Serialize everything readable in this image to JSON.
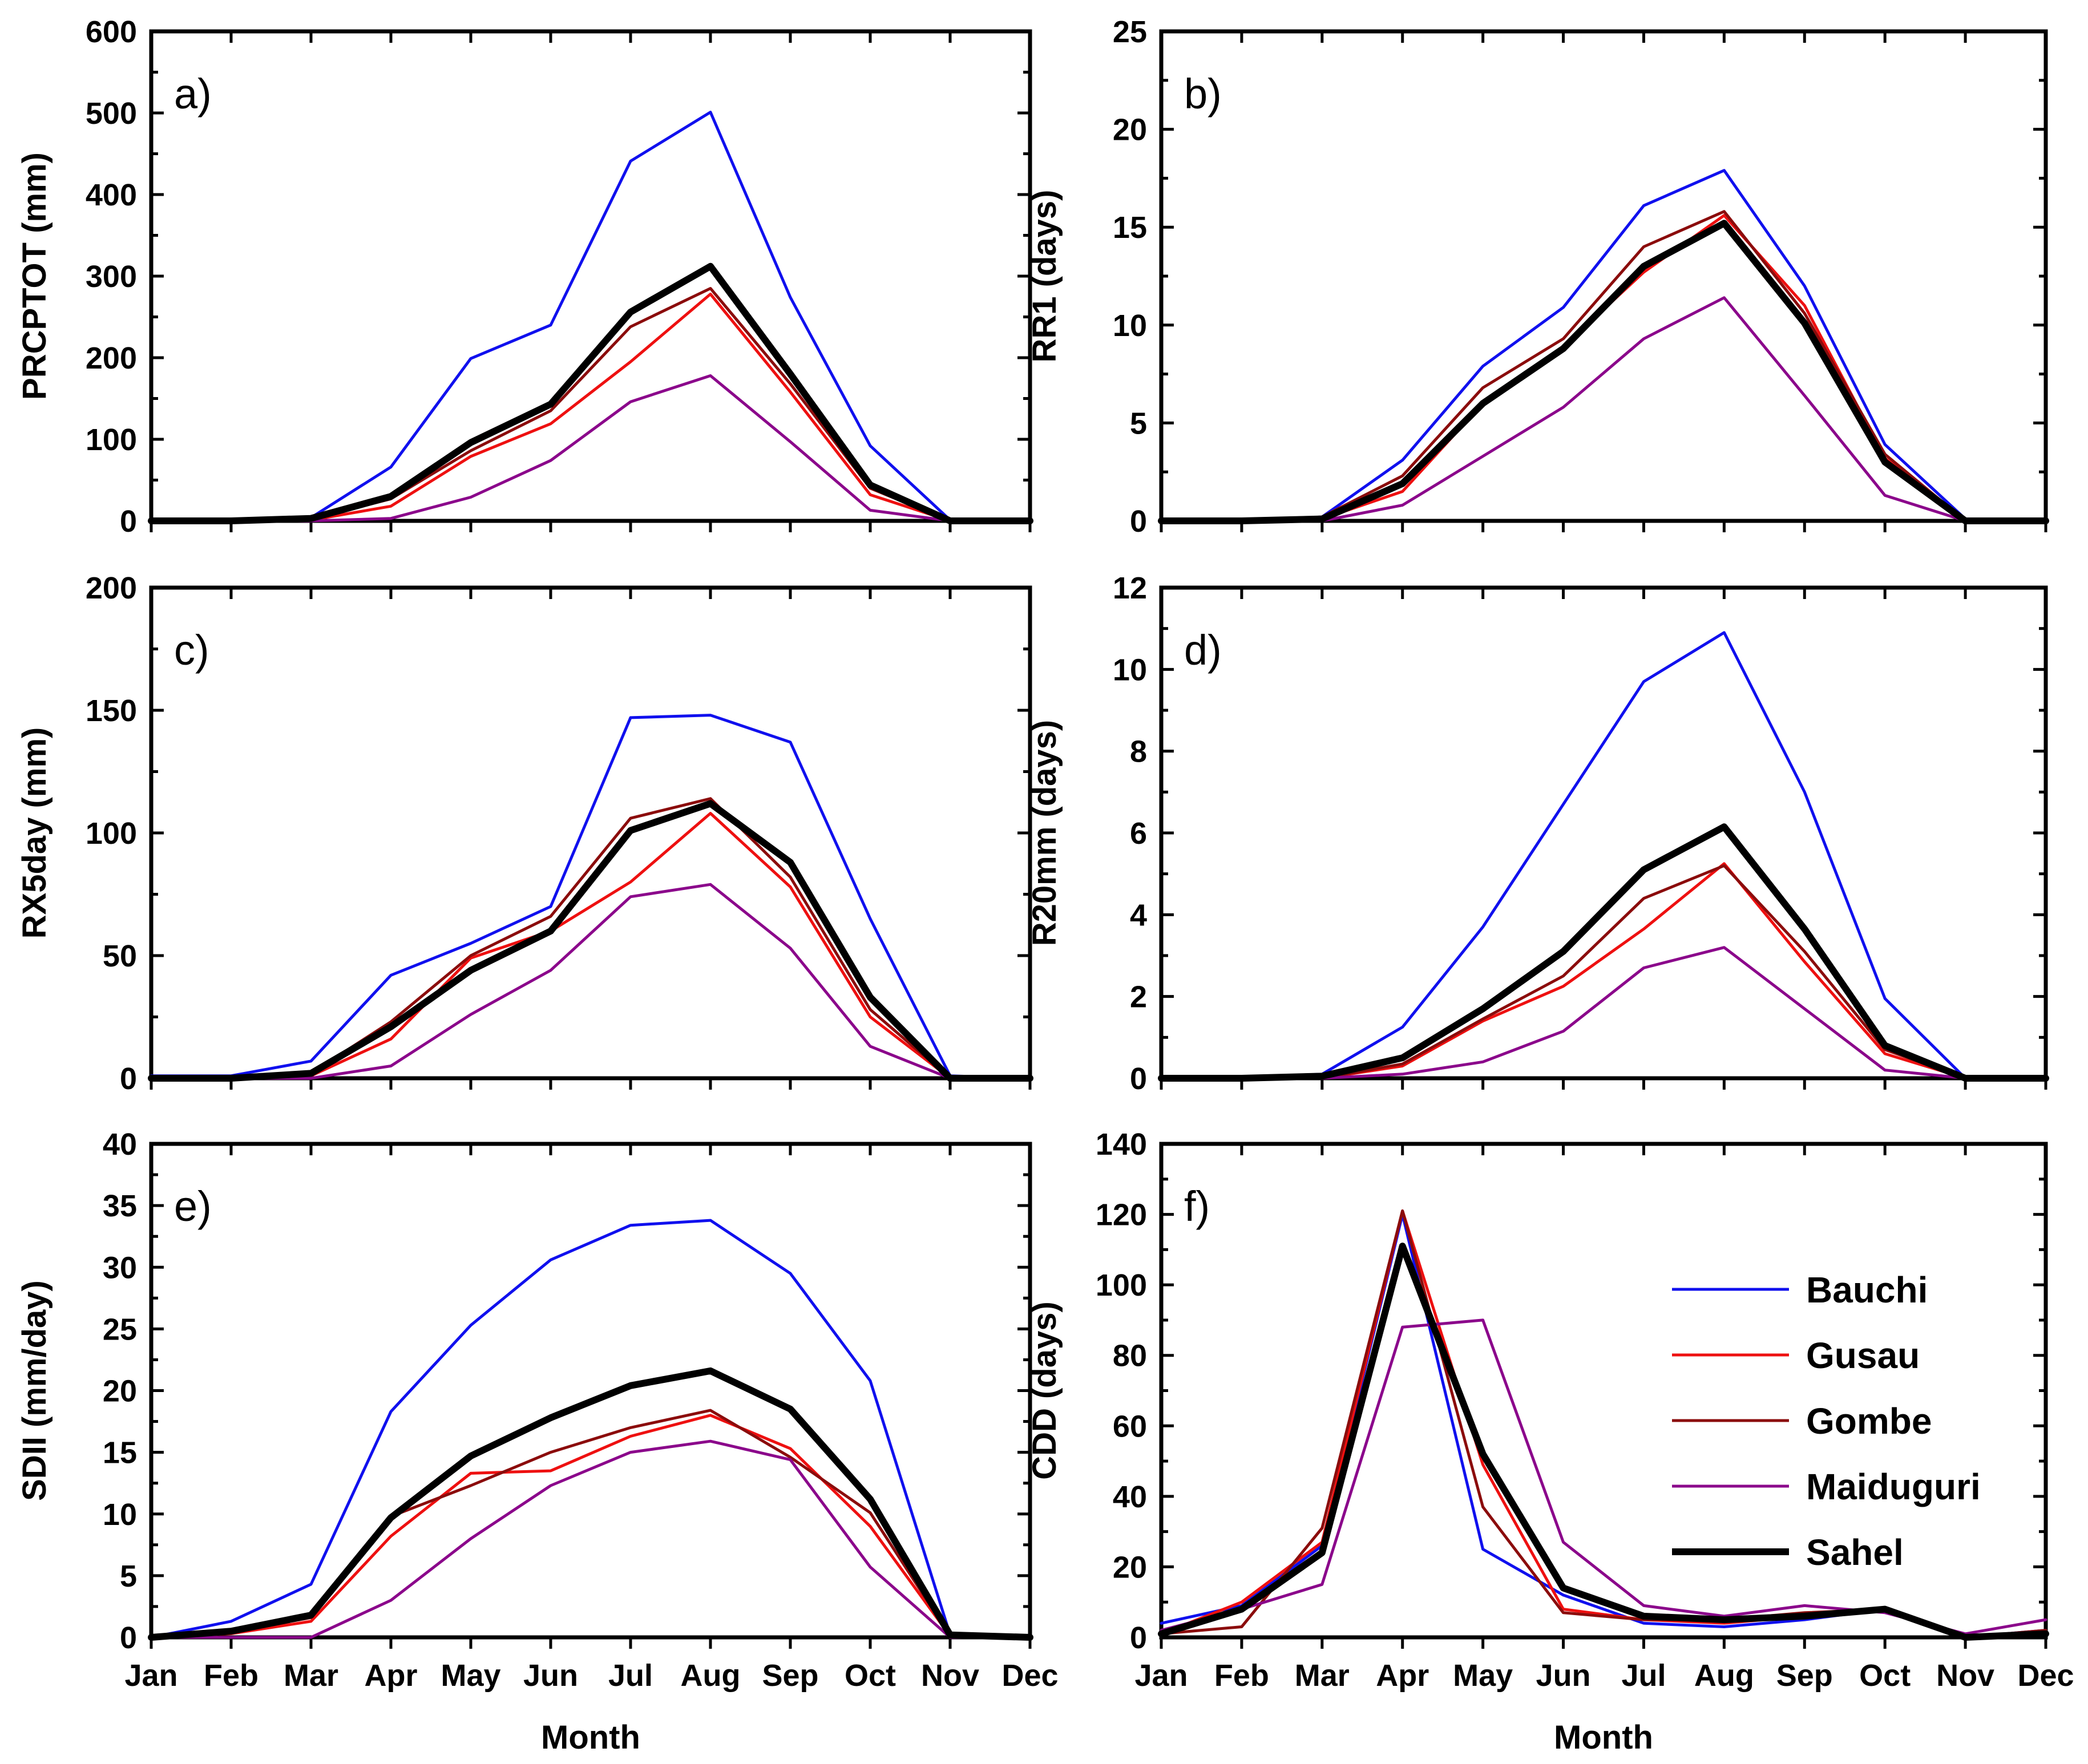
{
  "colors": {
    "Bauchi": "#1010ee",
    "Gusau": "#ee1010",
    "Gombe": "#8b0c0c",
    "Maiduguri": "#8b068b",
    "Sahel": "#000000"
  },
  "xlabel": "Month",
  "legend": {
    "position": "panel f, right",
    "entries": [
      "Bauchi",
      "Gusau",
      "Gombe",
      "Maiduguri",
      "Sahel"
    ]
  },
  "chart_data": [
    {
      "type": "line",
      "panel": "a)",
      "ylabel": "PRCPTOT (mm)",
      "ylim": [
        0,
        600
      ],
      "yticks": [
        0,
        100,
        200,
        300,
        400,
        500,
        600
      ],
      "categories": [
        "Jan",
        "Feb",
        "Mar",
        "Apr",
        "May",
        "Jun",
        "Jul",
        "Aug",
        "Sep",
        "Oct",
        "Nov",
        "Dec"
      ],
      "series": [
        {
          "name": "Bauchi",
          "values": [
            0,
            1,
            4,
            66,
            199,
            240,
            441,
            501,
            274,
            92,
            1,
            0
          ]
        },
        {
          "name": "Gusau",
          "values": [
            0,
            0,
            1,
            18,
            79,
            119,
            195,
            278,
            158,
            32,
            0,
            0
          ]
        },
        {
          "name": "Gombe",
          "values": [
            0,
            0,
            2,
            27,
            86,
            135,
            238,
            285,
            168,
            40,
            0,
            0
          ]
        },
        {
          "name": "Maiduguri",
          "values": [
            0,
            0,
            0,
            3,
            29,
            74,
            146,
            178,
            97,
            13,
            0,
            0
          ]
        },
        {
          "name": "Sahel",
          "values": [
            0,
            0,
            3,
            30,
            96,
            143,
            256,
            312,
            180,
            44,
            0,
            0
          ]
        }
      ]
    },
    {
      "type": "line",
      "panel": "b)",
      "ylabel": "RR1 (days)",
      "ylim": [
        0,
        25
      ],
      "yticks": [
        0,
        5,
        10,
        15,
        20,
        25
      ],
      "categories": [
        "Jan",
        "Feb",
        "Mar",
        "Apr",
        "May",
        "Jun",
        "Jul",
        "Aug",
        "Sep",
        "Oct",
        "Nov",
        "Dec"
      ],
      "series": [
        {
          "name": "Bauchi",
          "values": [
            0,
            0,
            0.2,
            3.1,
            7.9,
            10.9,
            16.1,
            17.9,
            12.0,
            3.9,
            0.1,
            0
          ]
        },
        {
          "name": "Gusau",
          "values": [
            0,
            0,
            0.1,
            1.5,
            6.0,
            8.9,
            12.7,
            15.6,
            11.0,
            3.2,
            0,
            0
          ]
        },
        {
          "name": "Gombe",
          "values": [
            0,
            0,
            0.2,
            2.3,
            6.8,
            9.3,
            14.0,
            15.8,
            10.6,
            3.4,
            0,
            0
          ]
        },
        {
          "name": "Maiduguri",
          "values": [
            0,
            0,
            0,
            0.8,
            3.3,
            5.8,
            9.3,
            11.4,
            6.4,
            1.3,
            0,
            0
          ]
        },
        {
          "name": "Sahel",
          "values": [
            0,
            0,
            0.1,
            1.9,
            6.0,
            8.8,
            13.0,
            15.2,
            10.1,
            3.0,
            0,
            0
          ]
        }
      ]
    },
    {
      "type": "line",
      "panel": "c)",
      "ylabel": "RX5day (mm)",
      "ylim": [
        0,
        200
      ],
      "yticks": [
        0,
        50,
        100,
        150,
        200
      ],
      "categories": [
        "Jan",
        "Feb",
        "Mar",
        "Apr",
        "May",
        "Jun",
        "Jul",
        "Aug",
        "Sep",
        "Oct",
        "Nov",
        "Dec"
      ],
      "series": [
        {
          "name": "Bauchi",
          "values": [
            1,
            1,
            7,
            42,
            55,
            70,
            147,
            148,
            137,
            65,
            1,
            0
          ]
        },
        {
          "name": "Gusau",
          "values": [
            0,
            0,
            1,
            16,
            49,
            60,
            80,
            108,
            78,
            25,
            0,
            0
          ]
        },
        {
          "name": "Gombe",
          "values": [
            0,
            0,
            2,
            23,
            50,
            66,
            106,
            114,
            82,
            28,
            0,
            0
          ]
        },
        {
          "name": "Maiduguri",
          "values": [
            0,
            0,
            0,
            5,
            26,
            44,
            74,
            79,
            53,
            13,
            0,
            0
          ]
        },
        {
          "name": "Sahel",
          "values": [
            0,
            0,
            2,
            21,
            44,
            60,
            101,
            112,
            88,
            33,
            0,
            0
          ]
        }
      ]
    },
    {
      "type": "line",
      "panel": "d)",
      "ylabel": "R20mm (days)",
      "ylim": [
        0,
        12
      ],
      "yticks": [
        0,
        2,
        4,
        6,
        8,
        10,
        12
      ],
      "categories": [
        "Jan",
        "Feb",
        "Mar",
        "Apr",
        "May",
        "Jun",
        "Jul",
        "Aug",
        "Sep",
        "Oct",
        "Nov",
        "Dec"
      ],
      "series": [
        {
          "name": "Bauchi",
          "values": [
            0,
            0,
            0.1,
            1.25,
            3.7,
            6.7,
            9.7,
            10.9,
            7.0,
            1.95,
            0,
            0
          ]
        },
        {
          "name": "Gusau",
          "values": [
            0,
            0,
            0,
            0.3,
            1.4,
            2.25,
            3.65,
            5.25,
            2.85,
            0.6,
            0,
            0
          ]
        },
        {
          "name": "Gombe",
          "values": [
            0,
            0,
            0,
            0.35,
            1.45,
            2.5,
            4.4,
            5.2,
            3.1,
            0.7,
            0,
            0
          ]
        },
        {
          "name": "Maiduguri",
          "values": [
            0,
            0,
            0,
            0.1,
            0.4,
            1.15,
            2.7,
            3.2,
            1.7,
            0.2,
            0,
            0
          ]
        },
        {
          "name": "Sahel",
          "values": [
            0,
            0,
            0.05,
            0.5,
            1.7,
            3.1,
            5.1,
            6.15,
            3.65,
            0.8,
            0,
            0
          ]
        }
      ]
    },
    {
      "type": "line",
      "panel": "e)",
      "ylabel": "SDII (mm/day)",
      "ylim": [
        0,
        40
      ],
      "yticks": [
        0,
        5,
        10,
        15,
        20,
        25,
        30,
        35,
        40
      ],
      "categories": [
        "Jan",
        "Feb",
        "Mar",
        "Apr",
        "May",
        "Jun",
        "Jul",
        "Aug",
        "Sep",
        "Oct",
        "Nov",
        "Dec"
      ],
      "series": [
        {
          "name": "Bauchi",
          "values": [
            0,
            1.3,
            4.3,
            18.3,
            25.3,
            30.6,
            33.4,
            33.8,
            29.5,
            20.8,
            0.2,
            0
          ]
        },
        {
          "name": "Gusau",
          "values": [
            0,
            0.3,
            1.3,
            8.2,
            13.3,
            13.5,
            16.3,
            18.0,
            15.3,
            9.0,
            0.1,
            0
          ]
        },
        {
          "name": "Gombe",
          "values": [
            0,
            0.4,
            1.6,
            9.8,
            12.3,
            15.0,
            17.0,
            18.4,
            14.6,
            10.1,
            0.1,
            0
          ]
        },
        {
          "name": "Maiduguri",
          "values": [
            0,
            0,
            0,
            3.0,
            8.0,
            12.3,
            15.0,
            15.9,
            14.4,
            5.7,
            0,
            0
          ]
        },
        {
          "name": "Sahel",
          "values": [
            0,
            0.5,
            1.8,
            9.7,
            14.7,
            17.8,
            20.4,
            21.6,
            18.5,
            11.2,
            0.2,
            0
          ]
        }
      ]
    },
    {
      "type": "line",
      "panel": "f)",
      "ylabel": "CDD (days)",
      "ylim": [
        0,
        140
      ],
      "yticks": [
        0,
        20,
        40,
        60,
        80,
        100,
        120,
        140
      ],
      "categories": [
        "Jan",
        "Feb",
        "Mar",
        "Apr",
        "May",
        "Jun",
        "Jul",
        "Aug",
        "Sep",
        "Oct",
        "Nov",
        "Dec"
      ],
      "series": [
        {
          "name": "Bauchi",
          "values": [
            4,
            9,
            26,
            120,
            25,
            12,
            4,
            3,
            5,
            8,
            0,
            2
          ]
        },
        {
          "name": "Gusau",
          "values": [
            1,
            10,
            27,
            121,
            49,
            8,
            5,
            4,
            6,
            8,
            0,
            1
          ]
        },
        {
          "name": "Gombe",
          "values": [
            1,
            3,
            31,
            121,
            37,
            7,
            5,
            5,
            7,
            8,
            0,
            2
          ]
        },
        {
          "name": "Maiduguri",
          "values": [
            2,
            8,
            15,
            88,
            90,
            27,
            9,
            6,
            9,
            7,
            1,
            5
          ]
        },
        {
          "name": "Sahel",
          "values": [
            1,
            8,
            24,
            111,
            52,
            14,
            6,
            5,
            6,
            8,
            0,
            1
          ]
        }
      ]
    }
  ]
}
